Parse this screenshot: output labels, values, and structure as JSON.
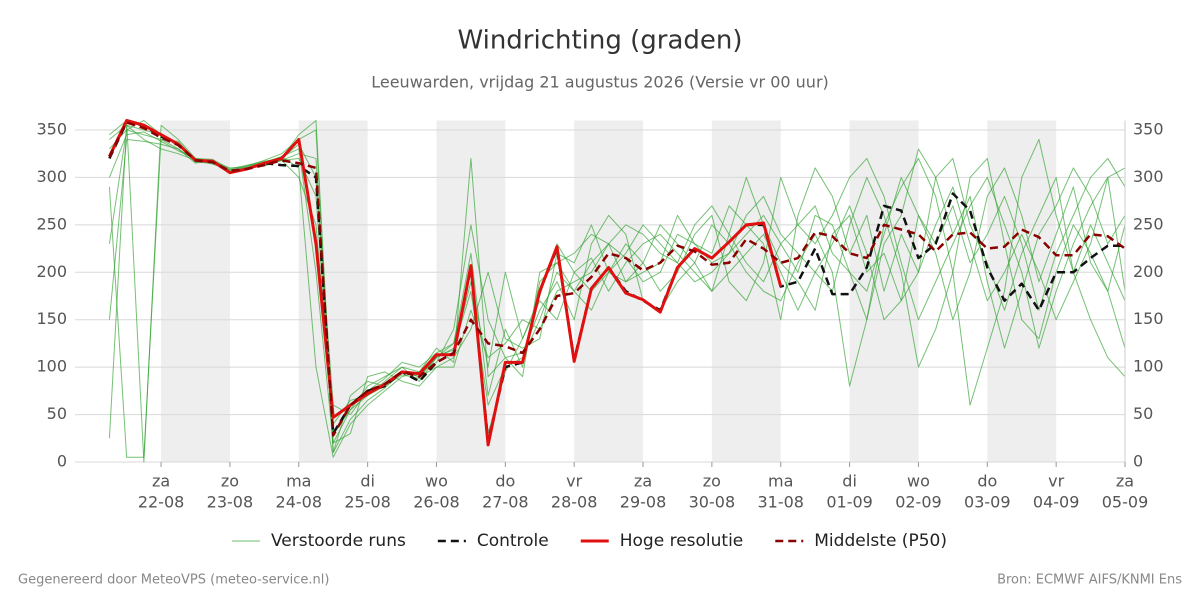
{
  "chart_data": {
    "type": "line",
    "title": "Windrichting (graden)",
    "subtitle": "Leeuwarden, vrijdag 21 augustus 2026 (Versie vr 00 uur)",
    "footer_left": "Gegenereerd door MeteoVPS (meteo-service.nl)",
    "footer_right": "Bron: ECMWF AIFS/KNMI Ens",
    "xlim": [
      -0.25,
      15
    ],
    "xticks": [
      {
        "value": 1,
        "label": "za",
        "sublabel": "22-08"
      },
      {
        "value": 2,
        "label": "zo",
        "sublabel": "23-08"
      },
      {
        "value": 3,
        "label": "ma",
        "sublabel": "24-08"
      },
      {
        "value": 4,
        "label": "di",
        "sublabel": "25-08"
      },
      {
        "value": 5,
        "label": "wo",
        "sublabel": "26-08"
      },
      {
        "value": 6,
        "label": "do",
        "sublabel": "27-08"
      },
      {
        "value": 7,
        "label": "vr",
        "sublabel": "28-08"
      },
      {
        "value": 8,
        "label": "za",
        "sublabel": "29-08"
      },
      {
        "value": 9,
        "label": "zo",
        "sublabel": "30-08"
      },
      {
        "value": 10,
        "label": "ma",
        "sublabel": "31-08"
      },
      {
        "value": 11,
        "label": "di",
        "sublabel": "01-09"
      },
      {
        "value": 12,
        "label": "wo",
        "sublabel": "02-09"
      },
      {
        "value": 13,
        "label": "do",
        "sublabel": "03-09"
      },
      {
        "value": 14,
        "label": "vr",
        "sublabel": "04-09"
      },
      {
        "value": 15,
        "label": "za",
        "sublabel": "05-09"
      }
    ],
    "ylim": [
      0,
      360
    ],
    "yticks": [
      0,
      50,
      100,
      150,
      200,
      250,
      300,
      350
    ],
    "grid": true,
    "x": [
      0.25,
      0.5,
      0.75,
      1,
      1.25,
      1.5,
      1.75,
      2,
      2.25,
      2.5,
      2.75,
      3,
      3.25,
      3.5,
      3.75,
      4,
      4.25,
      4.5,
      4.75,
      5,
      5.25,
      5.5,
      5.75,
      6,
      6.25,
      6.5,
      6.75,
      7,
      7.25,
      7.5,
      7.75,
      8,
      8.25,
      8.5,
      8.75,
      9,
      9.25,
      9.5,
      9.75,
      10,
      10.25,
      10.5,
      10.75,
      11,
      11.25,
      11.5,
      11.75,
      12,
      12.25,
      12.5,
      12.75,
      13,
      13.25,
      13.5,
      13.75,
      14,
      14.25,
      14.5,
      14.75,
      15
    ],
    "ensemble": {
      "name": "Verstoorde runs",
      "color": "#2ca02c",
      "runs": [
        [
          340,
          355,
          350,
          345,
          335,
          320,
          315,
          308,
          310,
          315,
          322,
          330,
          200,
          20,
          55,
          80,
          90,
          100,
          85,
          110,
          120,
          180,
          60,
          100,
          110,
          150,
          200,
          180,
          210,
          230,
          215,
          190,
          200,
          240,
          230,
          210,
          220,
          240,
          260,
          230,
          250,
          270,
          220,
          200,
          180,
          240,
          300,
          260,
          220,
          150,
          200,
          280,
          310,
          260,
          190,
          240,
          290,
          210,
          180,
          250
        ],
        [
          290,
          5,
          5,
          340,
          338,
          318,
          316,
          305,
          312,
          318,
          325,
          340,
          350,
          10,
          70,
          85,
          80,
          95,
          90,
          100,
          110,
          140,
          200,
          130,
          120,
          130,
          220,
          210,
          250,
          200,
          230,
          210,
          180,
          200,
          240,
          260,
          190,
          170,
          210,
          300,
          250,
          230,
          260,
          300,
          320,
          280,
          210,
          150,
          190,
          230,
          270,
          300,
          250,
          200,
          120,
          180,
          230,
          270,
          300,
          310
        ],
        [
          330,
          350,
          345,
          340,
          330,
          315,
          318,
          306,
          310,
          312,
          318,
          300,
          250,
          40,
          65,
          70,
          85,
          100,
          95,
          120,
          105,
          320,
          90,
          110,
          115,
          160,
          190,
          150,
          230,
          260,
          240,
          170,
          160,
          190,
          210,
          250,
          230,
          200,
          180,
          170,
          210,
          240,
          200,
          80,
          150,
          250,
          290,
          320,
          280,
          200,
          60,
          120,
          180,
          300,
          340,
          260,
          200,
          150,
          110,
          90
        ],
        [
          345,
          360,
          0,
          355,
          340,
          320,
          317,
          310,
          311,
          316,
          320,
          335,
          300,
          60,
          50,
          75,
          88,
          105,
          100,
          115,
          125,
          200,
          30,
          95,
          130,
          170,
          150,
          200,
          215,
          180,
          210,
          230,
          240,
          220,
          200,
          180,
          240,
          300,
          250,
          210,
          190,
          160,
          240,
          260,
          200,
          220,
          170,
          200,
          250,
          290,
          230,
          170,
          200,
          240,
          200,
          150,
          190,
          230,
          300,
          180
        ],
        [
          150,
          340,
          338,
          335,
          330,
          318,
          314,
          308,
          312,
          316,
          322,
          310,
          100,
          5,
          40,
          60,
          75,
          90,
          95,
          105,
          140,
          250,
          150,
          110,
          90,
          200,
          210,
          220,
          240,
          230,
          190,
          200,
          210,
          260,
          230,
          220,
          270,
          250,
          230,
          150,
          260,
          310,
          280,
          220,
          260,
          180,
          240,
          200,
          300,
          320,
          250,
          210,
          160,
          220,
          260,
          300,
          200,
          250,
          210,
          170
        ],
        [
          300,
          345,
          348,
          338,
          328,
          320,
          319,
          309,
          313,
          317,
          320,
          345,
          360,
          20,
          30,
          90,
          95,
          85,
          80,
          100,
          100,
          160,
          110,
          125,
          150,
          140,
          180,
          190,
          200,
          230,
          250,
          240,
          220,
          210,
          250,
          270,
          240,
          210,
          190,
          230,
          200,
          260,
          250,
          200,
          150,
          230,
          260,
          330,
          300,
          240,
          280,
          190,
          120,
          180,
          240,
          270,
          310,
          280,
          230,
          260
        ],
        [
          230,
          350,
          360,
          345,
          336,
          316,
          315,
          307,
          309,
          314,
          318,
          320,
          280,
          30,
          55,
          70,
          80,
          92,
          88,
          112,
          118,
          190,
          100,
          200,
          130,
          175,
          230,
          200,
          180,
          200,
          220,
          250,
          230,
          210,
          190,
          200,
          220,
          260,
          280,
          240,
          220,
          200,
          180,
          250,
          300,
          260,
          200,
          100,
          140,
          200,
          300,
          320,
          230,
          150,
          130,
          200,
          250,
          220,
          180,
          120
        ],
        [
          25,
          355,
          340,
          330,
          325,
          318,
          318,
          304,
          310,
          313,
          318,
          325,
          320,
          10,
          45,
          65,
          78,
          95,
          90,
          110,
          125,
          220,
          70,
          140,
          100,
          190,
          210,
          180,
          160,
          200,
          190,
          210,
          250,
          230,
          210,
          180,
          200,
          220,
          240,
          200,
          160,
          200,
          230,
          270,
          220,
          150,
          170,
          260,
          230,
          270,
          210,
          240,
          280,
          230,
          160,
          220,
          260,
          300,
          320,
          290
        ]
      ]
    },
    "series": [
      {
        "name": "Controle",
        "color": "#111111",
        "dash": true,
        "values": [
          320,
          358,
          355,
          343,
          335,
          318,
          317,
          305,
          309,
          315,
          313,
          312,
          300,
          30,
          60,
          75,
          80,
          95,
          85,
          105,
          115,
          205,
          22,
          100,
          105,
          180,
          225,
          108,
          183,
          205,
          180,
          170,
          160,
          205,
          225,
          215,
          232,
          250,
          250,
          185,
          190,
          225,
          177,
          177,
          205,
          270,
          265,
          215,
          230,
          283,
          265,
          205,
          170,
          188,
          160,
          200,
          200,
          215,
          228,
          228
        ]
      },
      {
        "name": "Hoge resolutie",
        "color": "#e01010",
        "dash": false,
        "values": [
          322,
          360,
          355,
          345,
          335,
          318,
          317,
          305,
          309,
          315,
          320,
          340,
          230,
          47,
          60,
          72,
          82,
          95,
          93,
          113,
          113,
          207,
          18,
          105,
          105,
          180,
          227,
          106,
          183,
          205,
          178,
          171,
          158,
          205,
          225,
          215,
          232,
          250,
          252,
          185,
          null,
          null,
          null,
          null,
          null,
          null,
          null,
          null,
          null,
          null,
          null,
          null,
          null,
          null,
          null,
          null,
          null,
          null,
          null,
          null
        ]
      },
      {
        "name": "Middelste (P50)",
        "color": "#8b0000",
        "dash": true,
        "values": [
          322,
          358,
          352,
          342,
          334,
          318,
          316,
          307,
          309,
          313,
          318,
          315,
          310,
          28,
          60,
          75,
          82,
          95,
          90,
          105,
          115,
          150,
          125,
          122,
          115,
          140,
          175,
          178,
          195,
          220,
          215,
          202,
          210,
          228,
          222,
          208,
          210,
          235,
          225,
          210,
          215,
          242,
          238,
          220,
          215,
          250,
          245,
          240,
          222,
          240,
          242,
          225,
          227,
          245,
          237,
          218,
          218,
          240,
          238,
          225
        ]
      }
    ]
  }
}
